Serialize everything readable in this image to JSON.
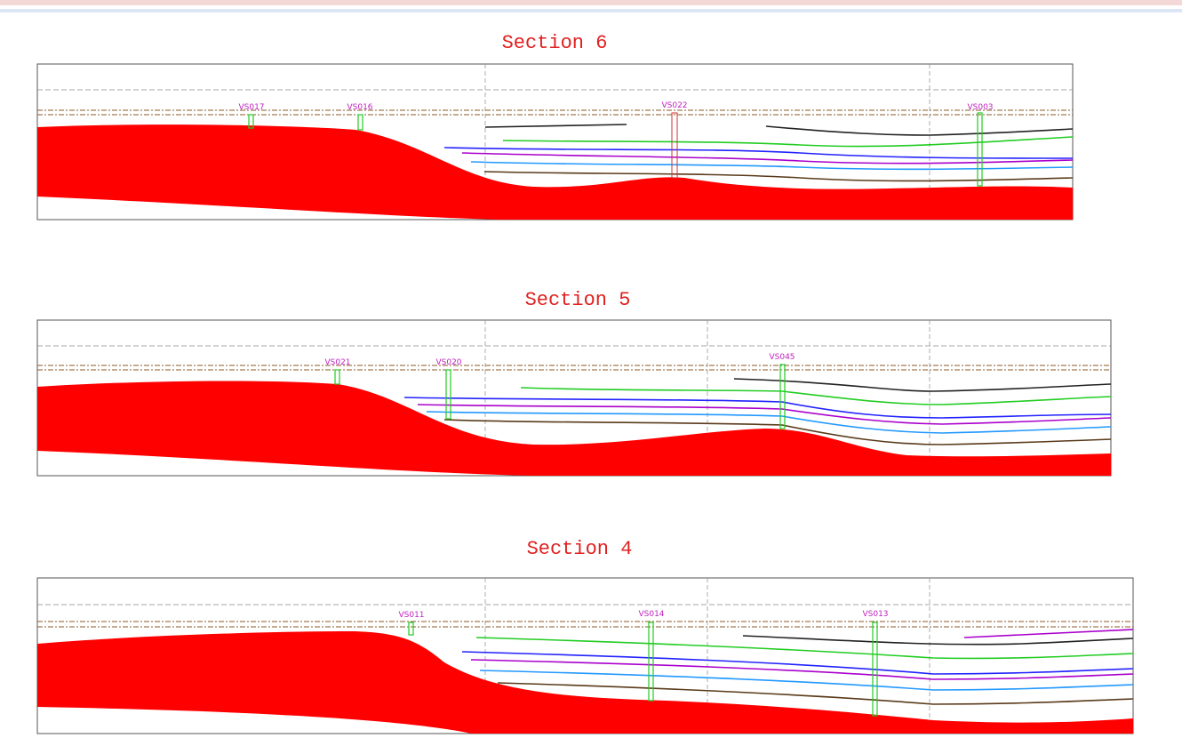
{
  "sections": [
    {
      "title": "Section 6",
      "boreholes": [
        "VS017",
        "VS016",
        "VS022",
        "VS003"
      ]
    },
    {
      "title": "Section 5",
      "boreholes": [
        "VS021",
        "VS020",
        "VS045"
      ]
    },
    {
      "title": "Section 4",
      "boreholes": [
        "VS011",
        "VS014",
        "VS013"
      ]
    }
  ]
}
